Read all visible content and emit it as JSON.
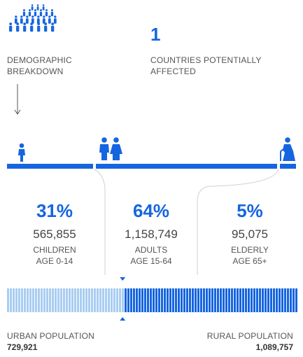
{
  "header": {
    "crowd_icon": "crowd-icon",
    "demographic_label_line1": "DEMOGRAPHIC",
    "demographic_label_line2": "BREAKDOWN",
    "countries_count": "1",
    "countries_label_line1": "COUNTRIES POTENTIALLY",
    "countries_label_line2": "AFFECTED"
  },
  "groups": [
    {
      "icon": "child-icon",
      "percent": "31%",
      "count": "565,855",
      "label": "CHILDREN",
      "age": "AGE 0-14"
    },
    {
      "icon": "adults-icon",
      "percent": "64%",
      "count": "1,158,749",
      "label": "ADULTS",
      "age": "AGE 15-64"
    },
    {
      "icon": "elderly-icon",
      "percent": "5%",
      "count": "95,075",
      "label": "ELDERLY",
      "age": "AGE 65+"
    }
  ],
  "population_split": {
    "urban_label": "URBAN POPULATION",
    "urban_value": "729,921",
    "rural_label": "RURAL POPULATION",
    "rural_value": "1,089,757",
    "urban_fraction": 0.4
  },
  "colors": {
    "accent": "#1565e0",
    "light_accent": "#a9cdf2"
  }
}
